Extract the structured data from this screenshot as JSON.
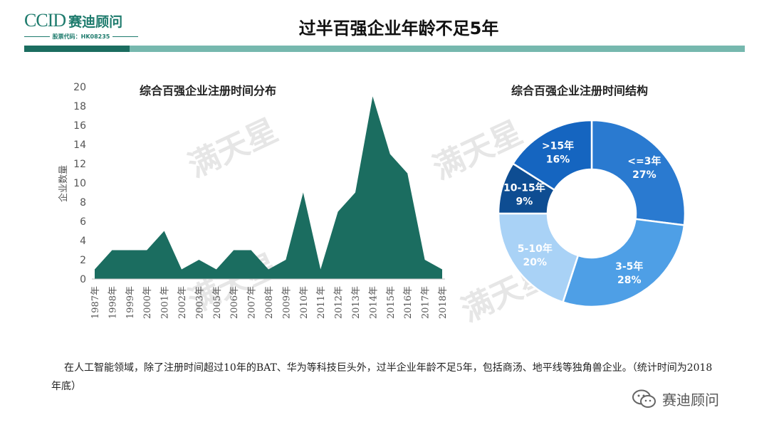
{
  "header": {
    "logo_text": "CCID",
    "logo_cn": "赛迪顾问",
    "stock_code": "股票代码：HK08235",
    "page_title": "过半百强企业年龄不足5年"
  },
  "chart_data": [
    {
      "type": "area",
      "title": "综合百强企业注册时间分布",
      "ylabel": "企业数量",
      "xlabel": "",
      "ylim": [
        0,
        20
      ],
      "yticks": [
        0,
        2,
        4,
        6,
        8,
        10,
        12,
        14,
        16,
        18,
        20
      ],
      "grid": false,
      "color": "#1b6d60",
      "categories": [
        "1987年",
        "1998年",
        "1999年",
        "2000年",
        "2001年",
        "2002年",
        "2003年",
        "2005年",
        "2006年",
        "2007年",
        "2008年",
        "2009年",
        "2010年",
        "2011年",
        "2012年",
        "2013年",
        "2014年",
        "2015年",
        "2016年",
        "2017年",
        "2018年"
      ],
      "values": [
        1,
        3,
        3,
        3,
        5,
        1,
        2,
        1,
        3,
        3,
        1,
        2,
        9,
        1,
        7,
        9,
        19,
        13,
        11,
        2,
        1
      ]
    },
    {
      "type": "pie",
      "title": "综合百强企业注册时间结构",
      "donut": true,
      "slices": [
        {
          "label": "<=3年",
          "value": 27,
          "value_label": "27%",
          "color": "#2a7ad0"
        },
        {
          "label": "3-5年",
          "value": 28,
          "value_label": "28%",
          "color": "#4e9fe6"
        },
        {
          "label": "5-10年",
          "value": 20,
          "value_label": "20%",
          "color": "#a9d2f6"
        },
        {
          "label": "10-15年",
          "value": 9,
          "value_label": "9%",
          "color": "#0e4d92"
        },
        {
          "label": ">15年",
          "value": 16,
          "value_label": "16%",
          "color": "#1565c0"
        }
      ]
    }
  ],
  "caption": "在人工智能领域，除了注册时间超过10年的BAT、华为等科技巨头外，过半企业年龄不足5年，包括商汤、地平线等独角兽企业。（统计时间为2018年底）",
  "source_badge": "赛迪顾问",
  "watermark": "满天星"
}
